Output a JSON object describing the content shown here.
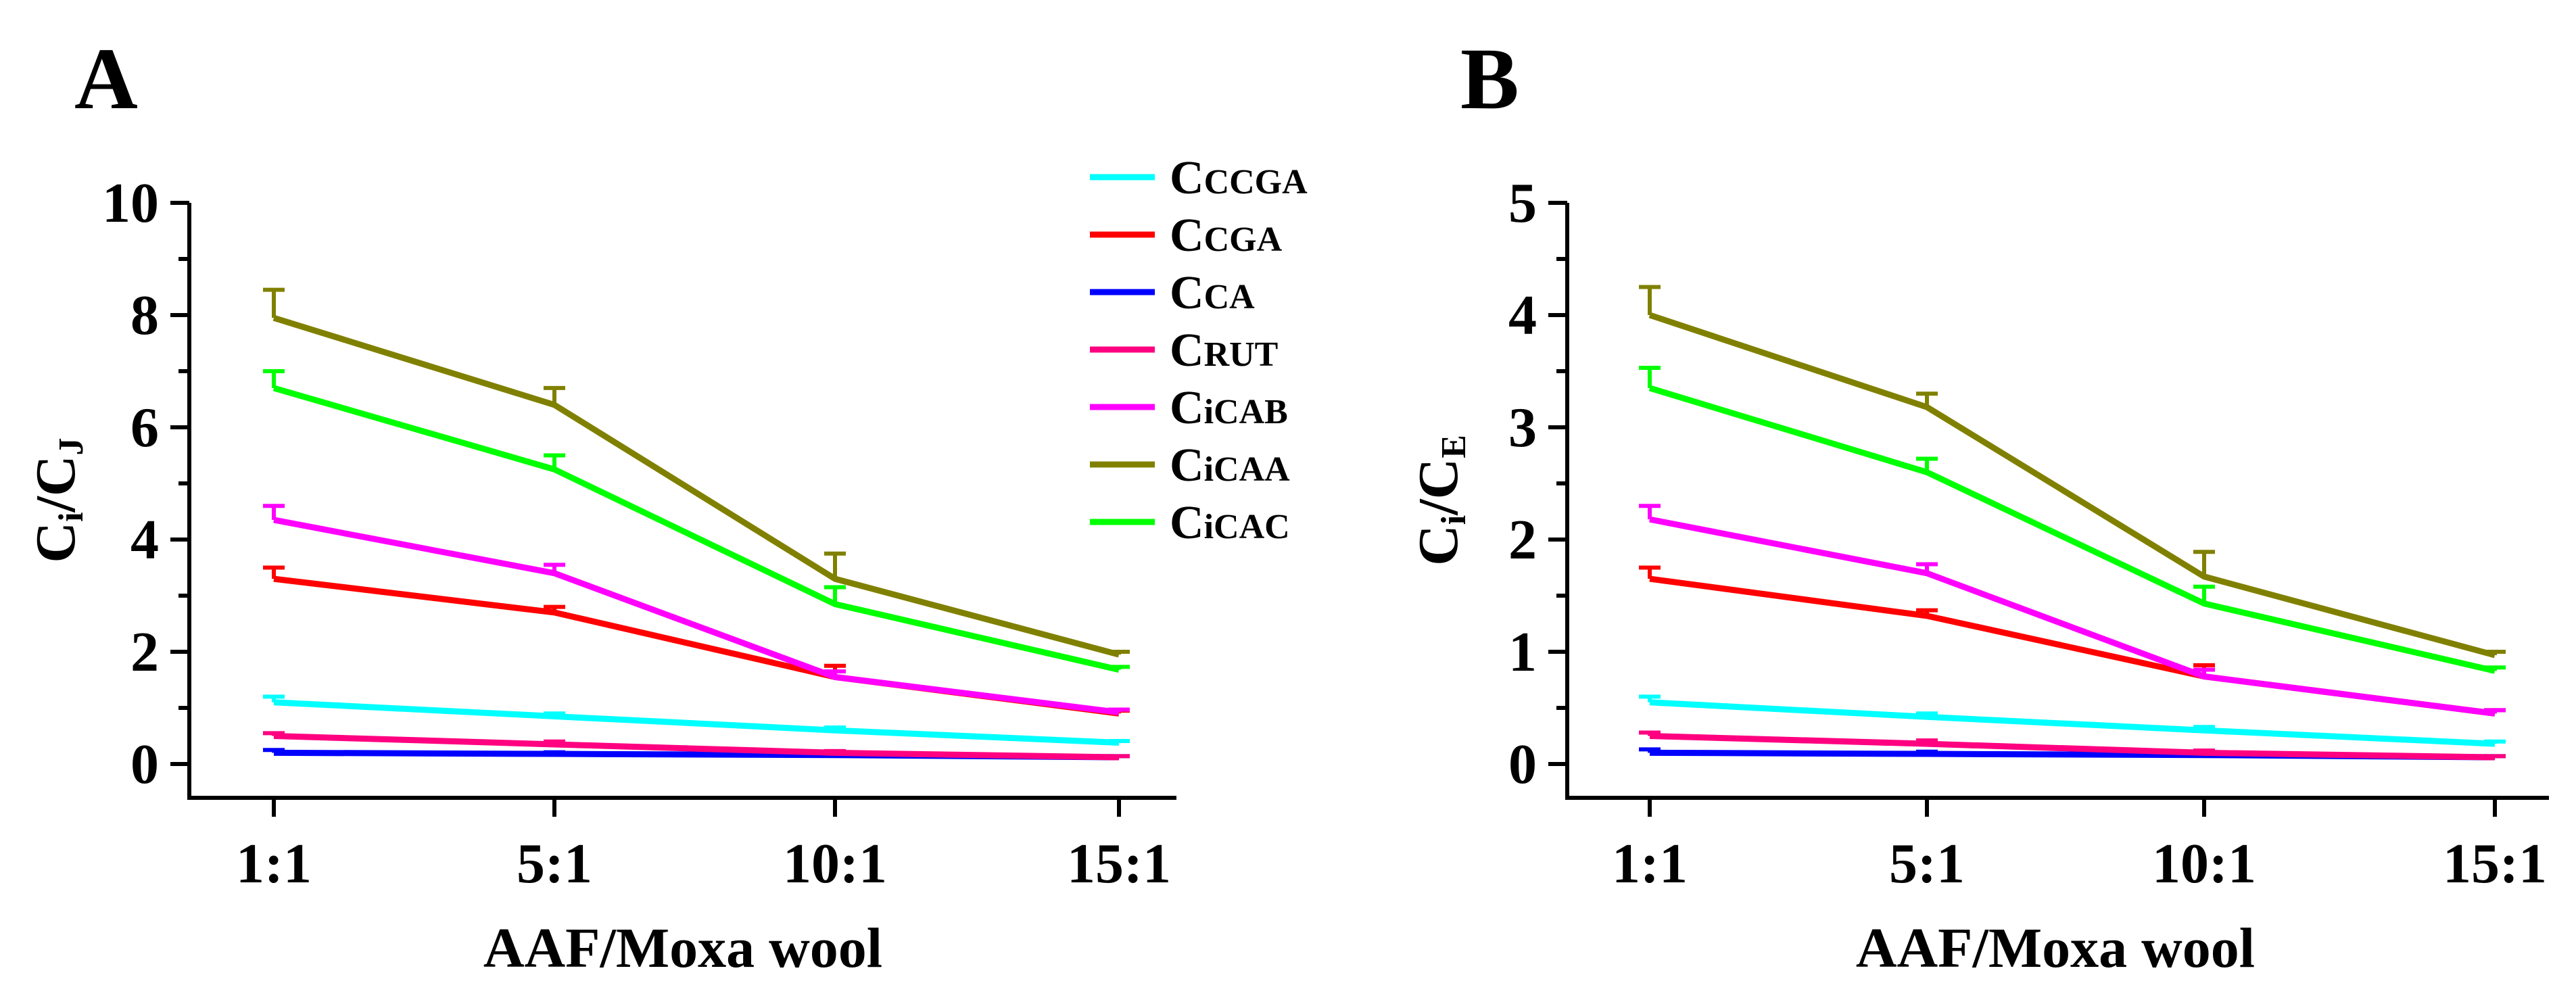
{
  "figure": {
    "x_axis_title": "AAF/Moxa wool",
    "categories": [
      "1:1",
      "5:1",
      "10:1",
      "15:1"
    ]
  },
  "legend": {
    "items": [
      {
        "main": "C",
        "sub": "CCGA",
        "color": "#00FFFF"
      },
      {
        "main": "C",
        "sub": "CGA",
        "color": "#FF0000"
      },
      {
        "main": "C",
        "sub": "CA",
        "color": "#0000FF"
      },
      {
        "main": "C",
        "sub": "RUT",
        "color": "#FF0080"
      },
      {
        "main": "C",
        "sub": "iCAB",
        "color": "#FF00FF"
      },
      {
        "main": "C",
        "sub": "iCAA",
        "color": "#808000"
      },
      {
        "main": "C",
        "sub": "iCAC",
        "color": "#00FF00"
      }
    ]
  },
  "chart_data": [
    {
      "type": "line",
      "panel": "A",
      "xlabel": "AAF/Moxa wool",
      "ylabel_main": "C",
      "ylabel_sub1": "i",
      "ylabel_mid": "/C",
      "ylabel_sub2": "J",
      "ylim": [
        0,
        10
      ],
      "yticks": [
        0,
        2,
        4,
        6,
        8,
        10
      ],
      "categories": [
        "1:1",
        "5:1",
        "10:1",
        "15:1"
      ],
      "series": [
        {
          "name": "CCCGA",
          "values": [
            1.1,
            0.85,
            0.6,
            0.38
          ],
          "errors": [
            0.1,
            0.05,
            0.05,
            0.03
          ]
        },
        {
          "name": "CCGA",
          "values": [
            3.3,
            2.7,
            1.55,
            0.9
          ],
          "errors": [
            0.2,
            0.1,
            0.2,
            0.05
          ]
        },
        {
          "name": "CCA",
          "values": [
            0.2,
            0.18,
            0.16,
            0.12
          ],
          "errors": [
            0.05,
            0.03,
            0.03,
            0.02
          ]
        },
        {
          "name": "CRUT",
          "values": [
            0.5,
            0.35,
            0.2,
            0.12
          ],
          "errors": [
            0.05,
            0.05,
            0.03,
            0.02
          ]
        },
        {
          "name": "CiCAB",
          "values": [
            4.35,
            3.4,
            1.55,
            0.92
          ],
          "errors": [
            0.25,
            0.15,
            0.1,
            0.05
          ]
        },
        {
          "name": "CiCAA",
          "values": [
            7.95,
            6.4,
            3.3,
            1.95
          ],
          "errors": [
            0.5,
            0.3,
            0.45,
            0.05
          ]
        },
        {
          "name": "CiCAC",
          "values": [
            6.7,
            5.25,
            2.85,
            1.68
          ],
          "errors": [
            0.3,
            0.25,
            0.3,
            0.05
          ]
        }
      ]
    },
    {
      "type": "line",
      "panel": "B",
      "xlabel": "AAF/Moxa wool",
      "ylabel_main": "C",
      "ylabel_sub1": "i",
      "ylabel_mid": "/C",
      "ylabel_sub2": "E",
      "ylim": [
        0,
        5
      ],
      "yticks": [
        0,
        1,
        2,
        3,
        4,
        5
      ],
      "categories": [
        "1:1",
        "5:1",
        "10:1",
        "15:1"
      ],
      "series": [
        {
          "name": "CCCGA",
          "values": [
            0.55,
            0.42,
            0.3,
            0.18
          ],
          "errors": [
            0.05,
            0.03,
            0.03,
            0.02
          ]
        },
        {
          "name": "CCGA",
          "values": [
            1.65,
            1.32,
            0.78,
            0.45
          ],
          "errors": [
            0.1,
            0.05,
            0.1,
            0.03
          ]
        },
        {
          "name": "CCA",
          "values": [
            0.1,
            0.09,
            0.08,
            0.06
          ],
          "errors": [
            0.03,
            0.02,
            0.02,
            0.01
          ]
        },
        {
          "name": "CRUT",
          "values": [
            0.25,
            0.18,
            0.1,
            0.06
          ],
          "errors": [
            0.03,
            0.03,
            0.02,
            0.01
          ]
        },
        {
          "name": "CiCAB",
          "values": [
            2.18,
            1.7,
            0.78,
            0.45
          ],
          "errors": [
            0.12,
            0.08,
            0.06,
            0.03
          ]
        },
        {
          "name": "CiCAA",
          "values": [
            4.0,
            3.18,
            1.67,
            0.97
          ],
          "errors": [
            0.25,
            0.12,
            0.22,
            0.03
          ]
        },
        {
          "name": "CiCAC",
          "values": [
            3.35,
            2.6,
            1.43,
            0.83
          ],
          "errors": [
            0.18,
            0.12,
            0.15,
            0.03
          ]
        }
      ]
    }
  ]
}
